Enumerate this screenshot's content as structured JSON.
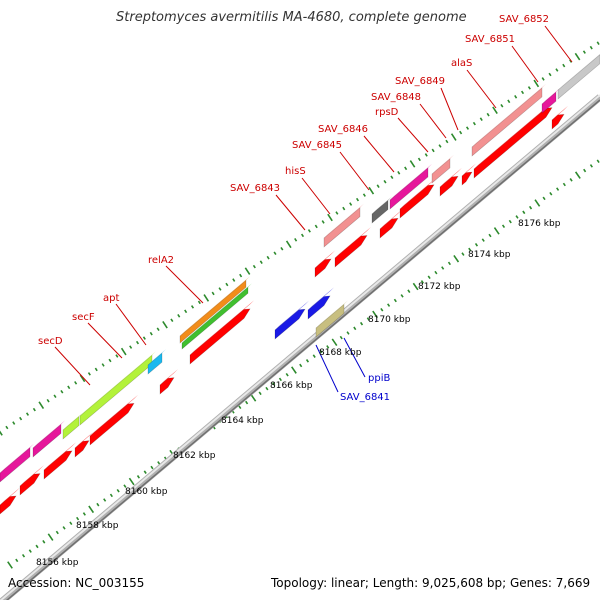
{
  "title": "Streptomyces avermitilis MA-4680, complete genome",
  "footer": {
    "accession": "Accession: NC_003155",
    "summary": "Topology: linear; Length: 9,025,608 bp; Genes: 7,669"
  },
  "colors": {
    "backbone": "#999999",
    "tick": "#2d8a2d",
    "forward_label": "#cc0000",
    "reverse_label": "#0000cc",
    "cds": "#ff0000"
  },
  "scale_labels": [
    "8156 kbp",
    "8158 kbp",
    "8160 kbp",
    "8162 kbp",
    "8164 kbp",
    "8166 kbp",
    "8168 kbp",
    "8170 kbp",
    "8172 kbp",
    "8174 kbp",
    "8176 kbp"
  ],
  "forward_labels": [
    "secD",
    "secF",
    "apt",
    "relA2",
    "SAV_6843",
    "hisS",
    "SAV_6845",
    "SAV_6846",
    "rpsD",
    "SAV_6848",
    "SAV_6849",
    "alaS",
    "SAV_6851",
    "SAV_6852"
  ],
  "reverse_labels": [
    "SAV_6841",
    "ppiB"
  ],
  "feature_colors": {
    "magenta": "#e6179b",
    "pink": "#f29191",
    "lime": "#b3f23a",
    "cyan": "#1ab8ee",
    "orange": "#f28c1a",
    "green": "#40bf2f",
    "gray": "#c8c8c8",
    "darkgray": "#666666",
    "blue": "#1a1ae6",
    "khaki": "#c8bf80"
  }
}
